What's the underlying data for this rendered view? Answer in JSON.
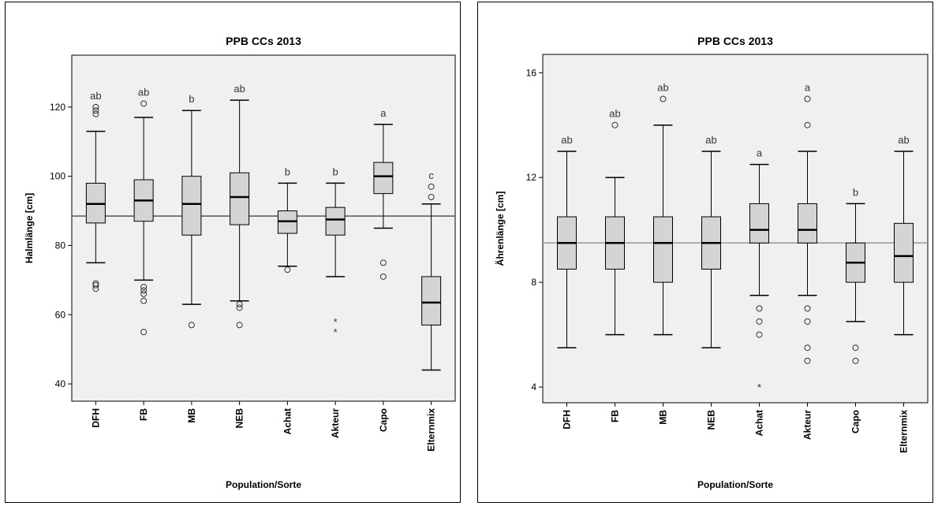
{
  "chart_data": [
    {
      "type": "box",
      "title": "PPB CCs 2013",
      "xlabel": "Population/Sorte",
      "ylabel": "Halmlänge [cm]",
      "ylim": [
        35,
        135
      ],
      "yticks": [
        40,
        60,
        80,
        100,
        120
      ],
      "reference_line": 88.5,
      "categories": [
        "DFH",
        "FB",
        "MB",
        "NEB",
        "Achat",
        "Akteur",
        "Capo",
        "Elternmix"
      ],
      "boxes": [
        {
          "min": 75,
          "q1": 86.5,
          "median": 92,
          "q3": 98,
          "max": 113,
          "outliers": [
            67.5,
            68.5,
            69,
            118,
            119,
            120
          ],
          "extremes": [],
          "letter": "ab"
        },
        {
          "min": 70,
          "q1": 87,
          "median": 93,
          "q3": 99,
          "max": 117,
          "outliers": [
            55,
            64,
            66,
            67,
            68,
            121
          ],
          "extremes": [],
          "letter": "ab"
        },
        {
          "min": 63,
          "q1": 83,
          "median": 92,
          "q3": 100,
          "max": 119,
          "outliers": [
            57
          ],
          "extremes": [],
          "letter": "b"
        },
        {
          "min": 64,
          "q1": 86,
          "median": 94,
          "q3": 101,
          "max": 122,
          "outliers": [
            57,
            62,
            63
          ],
          "extremes": [],
          "letter": "ab"
        },
        {
          "min": 74,
          "q1": 83.5,
          "median": 87,
          "q3": 90,
          "max": 98,
          "outliers": [
            73
          ],
          "extremes": [],
          "letter": "b"
        },
        {
          "min": 71,
          "q1": 83,
          "median": 87.5,
          "q3": 91,
          "max": 98,
          "outliers": [],
          "extremes": [
            55,
            58
          ],
          "letter": "b"
        },
        {
          "min": 85,
          "q1": 95,
          "median": 100,
          "q3": 104,
          "max": 115,
          "outliers": [
            71,
            75
          ],
          "extremes": [],
          "letter": "a"
        },
        {
          "min": 44,
          "q1": 57,
          "median": 63.5,
          "q3": 71,
          "max": 92,
          "outliers": [
            94,
            97
          ],
          "extremes": [],
          "letter": "c"
        }
      ]
    },
    {
      "type": "box",
      "title": "PPB CCs 2013",
      "xlabel": "Population/Sorte",
      "ylabel": "Ährenlänge [cm]",
      "ylim": [
        3.4,
        16.7
      ],
      "yticks": [
        4,
        8,
        12,
        16
      ],
      "reference_line": 9.5,
      "categories": [
        "DFH",
        "FB",
        "MB",
        "NEB",
        "Achat",
        "Akteur",
        "Capo",
        "Elternmix"
      ],
      "boxes": [
        {
          "min": 5.5,
          "q1": 8.5,
          "median": 9.5,
          "q3": 10.5,
          "max": 13,
          "outliers": [],
          "extremes": [],
          "letter": "ab"
        },
        {
          "min": 6,
          "q1": 8.5,
          "median": 9.5,
          "q3": 10.5,
          "max": 12,
          "outliers": [
            14
          ],
          "extremes": [],
          "letter": "ab"
        },
        {
          "min": 6,
          "q1": 8,
          "median": 9.5,
          "q3": 10.5,
          "max": 14,
          "outliers": [
            15
          ],
          "extremes": [],
          "letter": "ab"
        },
        {
          "min": 5.5,
          "q1": 8.5,
          "median": 9.5,
          "q3": 10.5,
          "max": 13,
          "outliers": [],
          "extremes": [],
          "letter": "ab"
        },
        {
          "min": 7.5,
          "q1": 9.5,
          "median": 10,
          "q3": 11,
          "max": 12.5,
          "outliers": [
            6,
            6.5,
            7
          ],
          "extremes": [
            4
          ],
          "letter": "a"
        },
        {
          "min": 7.5,
          "q1": 9.5,
          "median": 10,
          "q3": 11,
          "max": 13,
          "outliers": [
            5,
            5.5,
            6.5,
            7,
            14,
            15
          ],
          "extremes": [],
          "letter": "a"
        },
        {
          "min": 6.5,
          "q1": 8,
          "median": 8.75,
          "q3": 9.5,
          "max": 11,
          "outliers": [
            5,
            5.5
          ],
          "extremes": [],
          "letter": "b"
        },
        {
          "min": 6,
          "q1": 8,
          "median": 9,
          "q3": 10.25,
          "max": 13,
          "outliers": [],
          "extremes": [],
          "letter": "ab"
        }
      ]
    }
  ]
}
